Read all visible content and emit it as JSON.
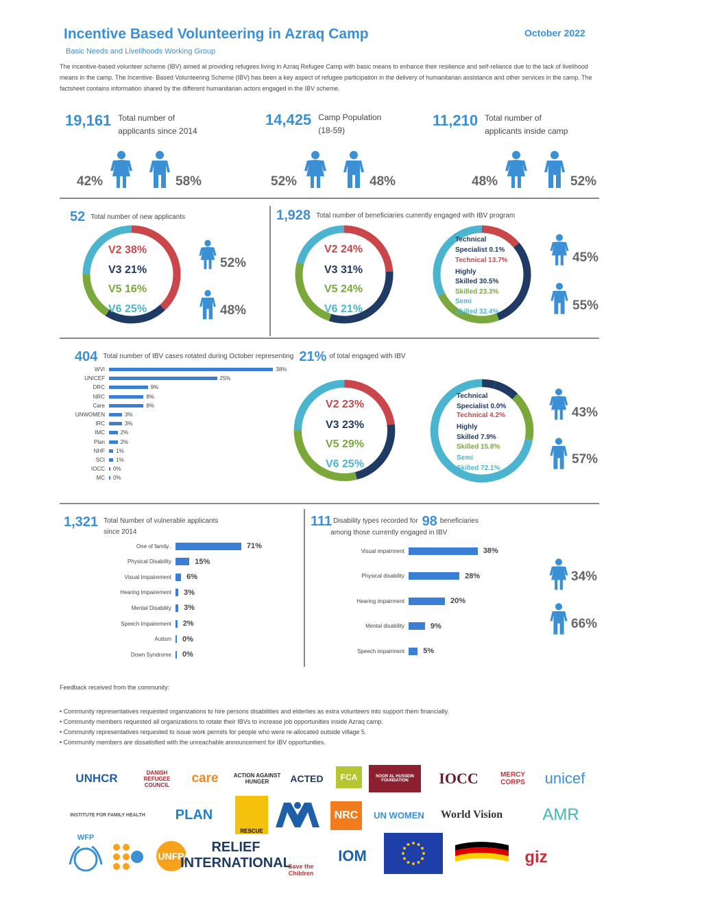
{
  "header": {
    "title": "Incentive Based Volunteering in Azraq Camp",
    "date": "October 2022",
    "subtitle": "Basic Needs and Livelihoods Working Group",
    "intro": "The incentive-based volunteer scheme (IBV) aimed at providing refugees living in Azraq Refugee Camp with basic means to enhance their resilience and self-reliance due to the lack of livelihood means in the camp. The Incentive- Based Volunteering Scheme (IBV) has been a key aspect of refugee participation in the delivery of humanitarian assistance and other services in the camp. The factsheet contains information shared by the different humanitarian actors engaged in the IBV scheme."
  },
  "top_stats": [
    {
      "value": "19,161",
      "caption1": "Total number of",
      "caption2": "applicants since 2014",
      "female": "42%",
      "male": "58%"
    },
    {
      "value": "14,425",
      "caption1": "Camp Population",
      "caption2": "(18-59)",
      "female": "52%",
      "male": "48%"
    },
    {
      "value": "11,210",
      "caption1": "Total number of",
      "caption2": "applicants inside camp",
      "female": "48%",
      "male": "52%"
    }
  ],
  "new_applicants": {
    "value": "52",
    "caption": "Total number of new applicants",
    "v2": "V2 38%",
    "v3": "V3 21%",
    "v5": "V5 16%",
    "v6": "V6 25%",
    "female": "52%",
    "male": "48%"
  },
  "engaged": {
    "value": "1,928",
    "caption": "Total number of beneficiaries currently engaged with IBV program",
    "v2": "V2 24%",
    "v3": "V3 31%",
    "v5": "V5 24%",
    "v6": "V6 21%",
    "skills": {
      "l1": "Technical",
      "l2": "Specialist 0.1%",
      "l3": "Technical 13.7%",
      "l4": "Highly",
      "l5": "Skilled 30.5%",
      "l6": "Skilled 23.3%",
      "l7": "Semi",
      "l8": "Skilled 32.4%"
    },
    "female": "45%",
    "male": "55%"
  },
  "rotated": {
    "value": "404",
    "caption": "Total number of IBV cases rotated during October representing",
    "pct": "21%",
    "caption2": "of total engaged with IBV",
    "v2": "V2 23%",
    "v3": "V3 23%",
    "v5": "V5 29%",
    "v6": "V6 25%",
    "skills": {
      "l1": "Technical",
      "l2": "Specialist 0.0%",
      "l3": "Technical 4.2%",
      "l4": "Highly",
      "l5": "Skilled 7.9%",
      "l6": "Skilled 15.8%",
      "l7": "Semi",
      "l8": "Skilled 72.1%"
    },
    "female": "43%",
    "male": "57%"
  },
  "vulnerable": {
    "value": "1,321",
    "caption1": "Total Number of vulnerable applicants",
    "caption2": "since 2014"
  },
  "disability": {
    "value": "111",
    "caption1": "Disability types recorded for",
    "value2": "98",
    "caption2": "beneficiaries",
    "caption3": "among those currently engaged in IBV",
    "female": "34%",
    "male": "66%"
  },
  "feedback": {
    "title": "Feedback received from the community:",
    "items": [
      "• Community representatives requested organizations to hire persons disabilities and elderlies as extra volunteers into support them financially.",
      "• Community members requested all organizations to rotate their IBVs to increase job opportunities inside Azraq camp.",
      "• Community representatives requested to issue work permits for people who were re-allocated outside village 5.",
      "• Community members are dissatisfied with the unreachable announcement for IBV opportunities."
    ]
  },
  "logos": [
    "UNHCR",
    "DANISH REFUGEE COUNCIL",
    "care",
    "ACTION AGAINST HUNGER",
    "ACTED",
    "FCA",
    "NOOR AL HUSSEIN FOUNDATION",
    "IOCC",
    "MERCY CORPS",
    "unicef",
    "INSTITUTE FOR FAMILY HEALTH",
    "PLAN",
    "RESCUE",
    "NRC",
    "UN WOMEN",
    "World Vision",
    "AMR",
    "WFP",
    "UNFPA",
    "RELIEF INTERNATIONAL",
    "Save the Children",
    "IOM",
    "EU",
    "giz"
  ],
  "chart_data": [
    {
      "type": "bar",
      "title": "",
      "categories": [
        "WVI",
        "UNICEF",
        "DRC",
        "NRC",
        "Care",
        "UNWOMEN",
        "IRC",
        "IMC",
        "Plan",
        "NHF",
        "SCI",
        "IOCC",
        "MC"
      ],
      "values": [
        38,
        25,
        9,
        8,
        8,
        3,
        3,
        2,
        2,
        1,
        1,
        0,
        0
      ],
      "labels": [
        "38%",
        "25%",
        "9%",
        "8%",
        "8%",
        "3%",
        "3%",
        "2%",
        "2%",
        "1%",
        "1%",
        "0%",
        "0%"
      ]
    },
    {
      "type": "bar",
      "title": "",
      "categories": [
        "One of family..",
        "Physical Disability",
        "Visual Impairement",
        "Hearing Impairement",
        "Mental Disability",
        "Speech Impairement",
        "Autism",
        "Down Syndrome"
      ],
      "values": [
        71,
        15,
        6,
        3,
        3,
        2,
        0,
        0
      ],
      "labels": [
        "71%",
        "15%",
        "6%",
        "3%",
        "3%",
        "2%",
        "0%",
        "0%"
      ]
    },
    {
      "type": "bar",
      "title": "",
      "categories": [
        "Visual impairment",
        "Physical disability",
        "Hearing impairment",
        "Mental disability",
        "Speech impairment"
      ],
      "values": [
        38,
        28,
        20,
        9,
        5
      ],
      "labels": [
        "38%",
        "28%",
        "20%",
        "9%",
        "5%"
      ]
    },
    {
      "type": "pie",
      "title": "",
      "categories": [
        "V2",
        "V3",
        "V5",
        "V6"
      ],
      "series": [
        {
          "values": [
            38,
            21,
            16,
            25
          ]
        },
        {
          "values": [
            24,
            31,
            24,
            21
          ]
        },
        {
          "values": [
            23,
            23,
            29,
            25
          ]
        }
      ]
    }
  ]
}
